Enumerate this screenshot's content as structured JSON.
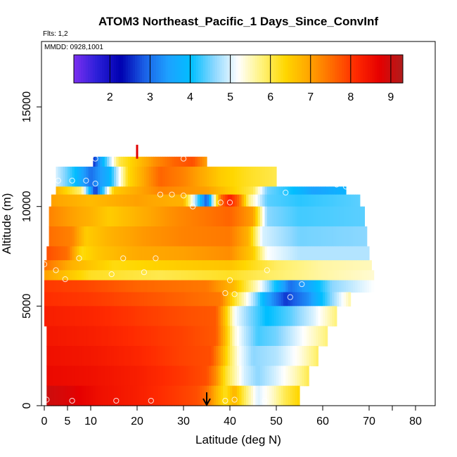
{
  "chart_data": {
    "type": "heatmap",
    "title": "ATOM3 Northeast_Pacific_1 Days_Since_ConvInf",
    "flights_label": "Flts: 1,2",
    "dates_label": "MMDD: 0928,1001",
    "xlabel": "Latitude (deg N)",
    "ylabel": "Altitude (m)",
    "xlim": [
      0,
      85
    ],
    "ylim": [
      0,
      17000
    ],
    "x_ticks": [
      0,
      5,
      10,
      20,
      30,
      40,
      50,
      60,
      70,
      80
    ],
    "y_ticks": [
      0,
      5000,
      10000,
      15000
    ],
    "colorbar": {
      "range": [
        1.1,
        9.3
      ],
      "ticks": [
        2,
        3,
        4,
        5,
        6,
        7,
        8,
        9
      ],
      "colors": [
        "#7b2ff0",
        "#2a1fd8",
        "#0000b0",
        "#1a5fe6",
        "#1ea0ff",
        "#00bfff",
        "#8fd8ff",
        "#ffffff",
        "#fff27a",
        "#ffd700",
        "#ffa500",
        "#ff6a00",
        "#ff2a00",
        "#e60000",
        "#b01c1c"
      ]
    },
    "bands": [
      {
        "y0": 12000,
        "y1": 12500,
        "x0": 10.5,
        "x1": 35,
        "knots": [
          [
            10.5,
            2.5
          ],
          [
            16,
            6
          ],
          [
            24,
            7.2
          ],
          [
            28,
            7.6
          ],
          [
            32,
            7.8
          ],
          [
            35,
            7.0
          ]
        ]
      },
      {
        "y0": 11000,
        "y1": 12000,
        "x0": 2.5,
        "x1": 50,
        "knots": [
          [
            2.5,
            5.0
          ],
          [
            6,
            4.2
          ],
          [
            10,
            3.0
          ],
          [
            14,
            3.8
          ],
          [
            18,
            6.3
          ],
          [
            25,
            7.6
          ],
          [
            30,
            7.3
          ],
          [
            38,
            6.5
          ],
          [
            44,
            6.2
          ],
          [
            50,
            6.0
          ]
        ]
      },
      {
        "y0": 10600,
        "y1": 11000,
        "x0": 2.5,
        "x1": 65,
        "knots": [
          [
            2.5,
            6.8
          ],
          [
            8,
            5.8
          ],
          [
            11,
            2.5
          ],
          [
            15,
            6.5
          ],
          [
            25,
            7.3
          ],
          [
            35,
            7.0
          ],
          [
            45,
            6.0
          ],
          [
            48,
            4.5
          ],
          [
            52,
            4.2
          ],
          [
            58,
            3.5
          ],
          [
            65,
            3.8
          ]
        ]
      },
      {
        "y0": 10000,
        "y1": 10600,
        "x0": 1.5,
        "x1": 68,
        "knots": [
          [
            1.5,
            7.0
          ],
          [
            10,
            6.7
          ],
          [
            20,
            7.0
          ],
          [
            30,
            6.8
          ],
          [
            35,
            2.8
          ],
          [
            38,
            7.5
          ],
          [
            40,
            8.3
          ],
          [
            42,
            7.5
          ],
          [
            44,
            5.8
          ],
          [
            48,
            4.4
          ],
          [
            55,
            4.2
          ],
          [
            68,
            4.4
          ]
        ]
      },
      {
        "y0": 9000,
        "y1": 10000,
        "x0": 1.0,
        "x1": 69,
        "knots": [
          [
            1,
            7.3
          ],
          [
            6,
            7.0
          ],
          [
            10,
            6.8
          ],
          [
            14,
            6.5
          ],
          [
            20,
            6.8
          ],
          [
            28,
            7.2
          ],
          [
            34,
            7.4
          ],
          [
            40,
            7.6
          ],
          [
            45,
            7.0
          ],
          [
            48,
            4.6
          ],
          [
            55,
            4.3
          ],
          [
            69,
            4.4
          ]
        ]
      },
      {
        "y0": 8000,
        "y1": 9000,
        "x0": 1.0,
        "x1": 69.5,
        "knots": [
          [
            1,
            7.5
          ],
          [
            6,
            7.3
          ],
          [
            9,
            6.5
          ],
          [
            14,
            6.8
          ],
          [
            22,
            7.1
          ],
          [
            30,
            7.3
          ],
          [
            40,
            7.4
          ],
          [
            44,
            6.8
          ],
          [
            47,
            5.0
          ],
          [
            55,
            4.5
          ],
          [
            69.5,
            4.6
          ]
        ]
      },
      {
        "y0": 7300,
        "y1": 8000,
        "x0": 0.5,
        "x1": 70,
        "knots": [
          [
            0.5,
            7.8
          ],
          [
            5,
            7.5
          ],
          [
            8,
            6.3
          ],
          [
            12,
            6.6
          ],
          [
            20,
            6.9
          ],
          [
            30,
            7.0
          ],
          [
            40,
            7.2
          ],
          [
            45,
            6.5
          ],
          [
            48,
            5.2
          ],
          [
            55,
            4.8
          ],
          [
            70,
            4.8
          ]
        ]
      },
      {
        "y0": 6800,
        "y1": 7300,
        "x0": 0.0,
        "x1": 70.5,
        "knots": [
          [
            0,
            7.5
          ],
          [
            6,
            6.8
          ],
          [
            15,
            6.3
          ],
          [
            30,
            6.5
          ],
          [
            40,
            6.6
          ],
          [
            50,
            5.9
          ],
          [
            60,
            5.6
          ],
          [
            70.5,
            5.5
          ]
        ]
      },
      {
        "y0": 6300,
        "y1": 6800,
        "x0": 0.0,
        "x1": 71,
        "knots": [
          [
            0,
            7.0
          ],
          [
            10,
            6.2
          ],
          [
            25,
            6.0
          ],
          [
            40,
            6.2
          ],
          [
            48,
            5.9
          ],
          [
            60,
            5.6
          ],
          [
            71,
            5.4
          ]
        ]
      },
      {
        "y0": 5700,
        "y1": 6300,
        "x0": 0.0,
        "x1": 71,
        "knots": [
          [
            0,
            8.0
          ],
          [
            8,
            7.9
          ],
          [
            20,
            7.6
          ],
          [
            35,
            7.4
          ],
          [
            41,
            6.7
          ],
          [
            46,
            5.4
          ],
          [
            50,
            4.0
          ],
          [
            53,
            3.0
          ],
          [
            57,
            3.6
          ],
          [
            62,
            4.6
          ],
          [
            71,
            5.2
          ]
        ]
      },
      {
        "y0": 5000,
        "y1": 5700,
        "x0": 0.0,
        "x1": 66,
        "knots": [
          [
            0,
            8.1
          ],
          [
            10,
            8.0
          ],
          [
            20,
            7.8
          ],
          [
            30,
            7.6
          ],
          [
            38,
            7.4
          ],
          [
            41,
            6.2
          ],
          [
            45,
            4.8
          ],
          [
            48,
            3.6
          ],
          [
            52,
            2.6
          ],
          [
            57,
            3.3
          ],
          [
            62,
            4.6
          ],
          [
            66,
            5.6
          ]
        ]
      },
      {
        "y0": 4000,
        "y1": 5000,
        "x0": 0.0,
        "x1": 63,
        "knots": [
          [
            0,
            8.3
          ],
          [
            10,
            8.2
          ],
          [
            20,
            8.0
          ],
          [
            30,
            7.8
          ],
          [
            37,
            7.7
          ],
          [
            39,
            6.6
          ],
          [
            41,
            5.2
          ],
          [
            44,
            4.6
          ],
          [
            48,
            4.0
          ],
          [
            53,
            4.4
          ],
          [
            58,
            5.0
          ],
          [
            63,
            5.8
          ]
        ]
      },
      {
        "y0": 3000,
        "y1": 4000,
        "x0": 0.5,
        "x1": 61,
        "knots": [
          [
            0.5,
            8.4
          ],
          [
            10,
            8.3
          ],
          [
            20,
            8.1
          ],
          [
            30,
            7.9
          ],
          [
            37,
            7.7
          ],
          [
            39,
            6.7
          ],
          [
            41,
            5.4
          ],
          [
            43,
            4.9
          ],
          [
            46,
            4.3
          ],
          [
            50,
            4.5
          ],
          [
            55,
            5.1
          ],
          [
            61,
            5.8
          ]
        ]
      },
      {
        "y0": 2000,
        "y1": 3000,
        "x0": 0.5,
        "x1": 59,
        "knots": [
          [
            0.5,
            8.5
          ],
          [
            10,
            8.4
          ],
          [
            20,
            8.2
          ],
          [
            30,
            7.9
          ],
          [
            36,
            7.8
          ],
          [
            38,
            7.0
          ],
          [
            40,
            6.0
          ],
          [
            42,
            5.2
          ],
          [
            45,
            4.6
          ],
          [
            50,
            4.8
          ],
          [
            55,
            5.3
          ],
          [
            59,
            5.9
          ]
        ]
      },
      {
        "y0": 1000,
        "y1": 2000,
        "x0": 0.5,
        "x1": 57,
        "knots": [
          [
            0.5,
            8.6
          ],
          [
            10,
            8.5
          ],
          [
            20,
            8.3
          ],
          [
            30,
            8.0
          ],
          [
            35,
            7.8
          ],
          [
            37,
            7.2
          ],
          [
            39,
            6.2
          ],
          [
            41,
            5.6
          ],
          [
            43,
            5.0
          ],
          [
            46,
            4.6
          ],
          [
            50,
            5.0
          ],
          [
            54,
            5.5
          ],
          [
            57,
            6.0
          ]
        ]
      },
      {
        "y0": 0,
        "y1": 1000,
        "x0": 0.5,
        "x1": 55,
        "knots": [
          [
            0.5,
            9.0
          ],
          [
            6,
            8.8
          ],
          [
            12,
            8.5
          ],
          [
            20,
            8.3
          ],
          [
            28,
            8.0
          ],
          [
            33,
            7.8
          ],
          [
            35,
            7.5
          ],
          [
            37,
            6.8
          ],
          [
            39,
            6.2
          ],
          [
            41,
            6.8
          ],
          [
            43,
            6.0
          ],
          [
            46,
            5.0
          ],
          [
            49,
            5.4
          ],
          [
            52,
            6.0
          ],
          [
            55,
            6.4
          ]
        ]
      }
    ],
    "sample_points": [
      [
        11,
        12400
      ],
      [
        30,
        12400
      ],
      [
        3,
        11300
      ],
      [
        6,
        11300
      ],
      [
        9,
        11300
      ],
      [
        11,
        11150
      ],
      [
        59,
        11200
      ],
      [
        61,
        11150
      ],
      [
        63,
        11100
      ],
      [
        65,
        11000
      ],
      [
        68,
        10950
      ],
      [
        52,
        10700
      ],
      [
        25,
        10600
      ],
      [
        27.5,
        10600
      ],
      [
        30,
        10550
      ],
      [
        32,
        10000
      ],
      [
        38,
        10200
      ],
      [
        40,
        10200
      ],
      [
        17,
        7400
      ],
      [
        24,
        7400
      ],
      [
        7.5,
        7400
      ],
      [
        2.5,
        6800
      ],
      [
        14.5,
        6600
      ],
      [
        21.5,
        6700
      ],
      [
        0,
        7100
      ],
      [
        4.5,
        6350
      ],
      [
        40,
        6300
      ],
      [
        48,
        6800
      ],
      [
        39,
        5650
      ],
      [
        41,
        5600
      ],
      [
        53,
        5450
      ],
      [
        55.5,
        6100
      ],
      [
        0.5,
        300
      ],
      [
        6,
        250
      ],
      [
        15.5,
        250
      ],
      [
        23,
        250
      ],
      [
        39,
        250
      ],
      [
        41,
        300
      ],
      [
        47.5,
        250
      ]
    ],
    "flight_markers": [
      {
        "lat": 20,
        "alt_top": 13100,
        "alt_bottom": 12400,
        "color": "#e00000"
      }
    ],
    "arrow_marker": {
      "lat": 35,
      "alt_top": 600,
      "alt_bottom": 0,
      "color": "#000000"
    }
  }
}
